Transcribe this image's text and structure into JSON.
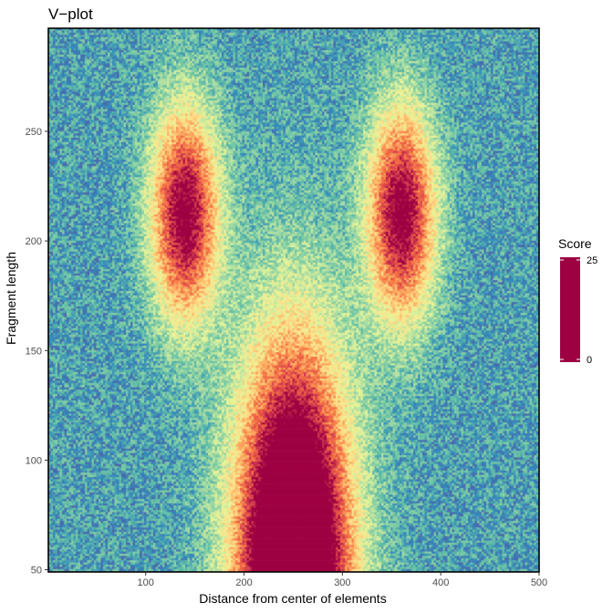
{
  "chart_data": {
    "type": "heatmap",
    "title": "V−plot",
    "xlabel": "Distance from center of elements",
    "ylabel": "Fragment length",
    "xlim": [
      1,
      500
    ],
    "ylim": [
      49,
      297
    ],
    "x_ticks": [
      100,
      200,
      300,
      400,
      500
    ],
    "y_ticks": [
      50,
      100,
      150,
      200,
      250
    ],
    "grid": false,
    "legend": {
      "title": "Score",
      "placement": "right",
      "range": [
        0,
        25
      ],
      "ticks": [
        0,
        25
      ]
    },
    "color_scale": {
      "name": "Spectral",
      "stops": [
        "#5E4FA2",
        "#3288BD",
        "#66C2A5",
        "#ABDDA4",
        "#E6F598",
        "#FEE08B",
        "#FDAE61",
        "#F46D43",
        "#D53E4F",
        "#9E0142"
      ]
    },
    "features": [
      {
        "x": 140,
        "y": 212,
        "sx": 24,
        "sy": 34,
        "peak": 23
      },
      {
        "x": 360,
        "y": 212,
        "sx": 24,
        "sy": 34,
        "peak": 23
      },
      {
        "x": 250,
        "y": 49,
        "sx": 40,
        "sy": 70,
        "peak": 38
      }
    ],
    "background_score": 4
  }
}
